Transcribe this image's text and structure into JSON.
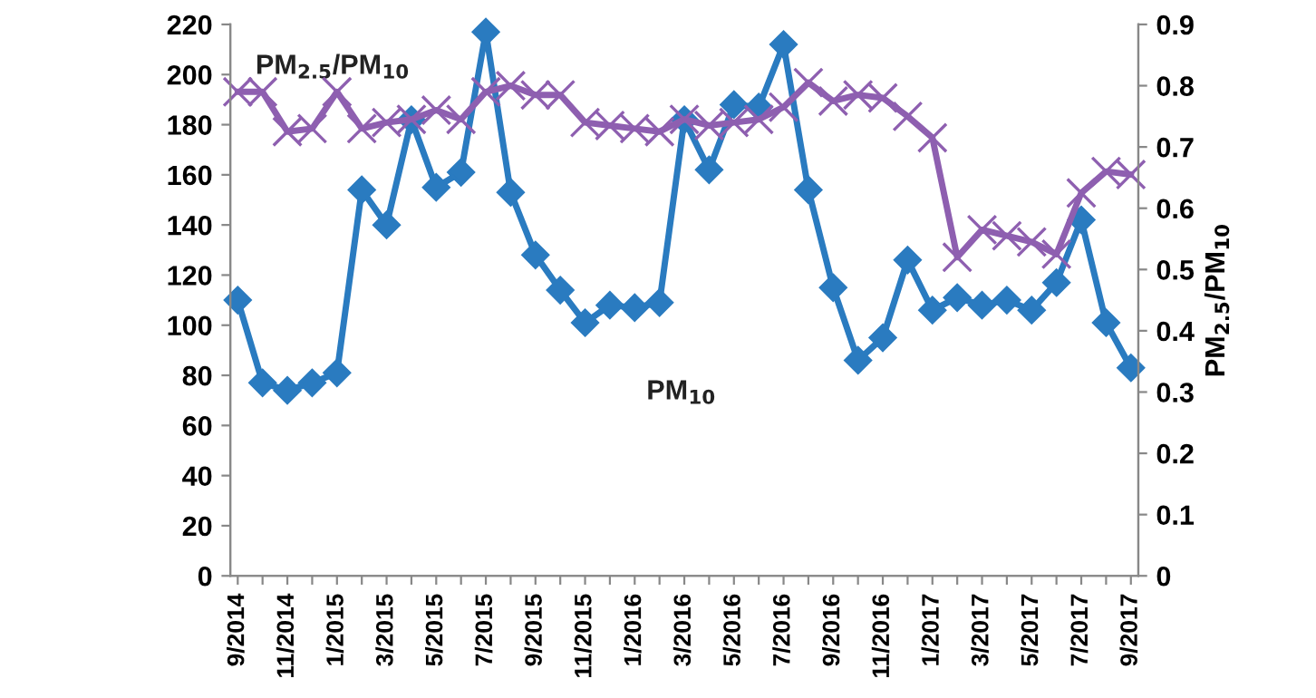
{
  "chart_data": {
    "type": "line",
    "categories": [
      "9/2014",
      null,
      "11/2014",
      null,
      "1/2015",
      null,
      "3/2015",
      null,
      "5/2015",
      null,
      "7/2015",
      null,
      "9/2015",
      null,
      "11/2015",
      null,
      "1/2016",
      null,
      "3/2016",
      null,
      "5/2016",
      null,
      "7/2016",
      null,
      "9/2016",
      null,
      "11/2016",
      null,
      "1/2017",
      null,
      "3/2017",
      null,
      "5/2017",
      null,
      "7/2017",
      null,
      "9/2017"
    ],
    "series": [
      {
        "name": "PM$_{10}$",
        "color": "#2a7bc0",
        "marker": "diamond",
        "values": [
          110,
          77,
          74,
          77,
          81,
          154,
          140,
          182,
          155,
          161,
          217,
          153,
          128,
          114,
          101,
          108,
          107,
          109,
          182,
          162,
          188,
          187,
          212,
          154,
          115,
          86,
          95,
          126,
          106,
          111,
          108,
          110,
          106,
          117,
          142,
          101,
          83
        ]
      },
      {
        "name": "PM$_{2.5}$/PM$_{10}$",
        "color": "#8e5fb0",
        "marker": "cross",
        "axis": "y2",
        "values": [
          0.79,
          0.79,
          0.725,
          0.73,
          0.79,
          0.73,
          0.74,
          0.745,
          0.76,
          0.745,
          0.79,
          0.8,
          0.785,
          0.785,
          0.74,
          0.735,
          0.73,
          0.725,
          0.745,
          0.735,
          0.74,
          0.745,
          0.765,
          0.805,
          0.775,
          0.785,
          0.78,
          0.75,
          0.715,
          0.52,
          0.565,
          0.555,
          0.545,
          0.525,
          0.625,
          0.66,
          0.655
        ]
      }
    ],
    "y2label": "PM$_{2.5}$/PM$_{10}$",
    "ylim": [
      0,
      220
    ],
    "yticks": [
      0,
      20,
      40,
      60,
      80,
      100,
      120,
      140,
      160,
      180,
      200,
      220
    ],
    "y2lim": [
      0,
      0.9
    ],
    "y2ticks": [
      0,
      0.1,
      0.2,
      0.3,
      0.4,
      0.5,
      0.6,
      0.7,
      0.8,
      0.9
    ],
    "grid": false,
    "legend": false,
    "line_style": "solid"
  }
}
